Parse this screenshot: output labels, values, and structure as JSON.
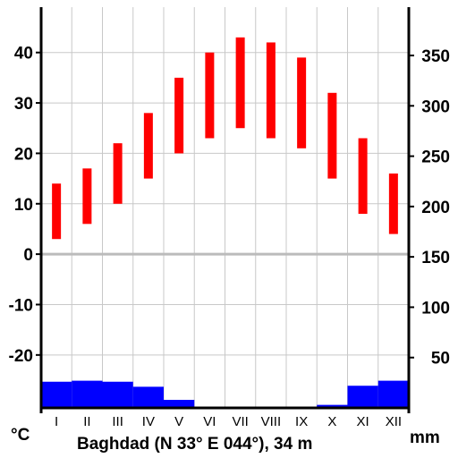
{
  "chart_data": {
    "type": "climate-diagram",
    "title": "Baghdad (N 33° E 044°), 34 m",
    "left_unit": "°C",
    "right_unit": "mm",
    "categories": [
      "I",
      "II",
      "III",
      "IV",
      "V",
      "VI",
      "VII",
      "VIII",
      "IX",
      "X",
      "XI",
      "XII"
    ],
    "temperature": {
      "min": [
        3,
        6,
        10,
        15,
        20,
        23,
        25,
        23,
        21,
        15,
        8,
        4
      ],
      "max": [
        14,
        17,
        22,
        28,
        35,
        40,
        43,
        42,
        39,
        32,
        23,
        16
      ]
    },
    "precipitation_mm": [
      26,
      27,
      26,
      21,
      8,
      0,
      0,
      0,
      0,
      3,
      22,
      27
    ],
    "left_axis": {
      "ticks": [
        40,
        30,
        20,
        10,
        0,
        -10,
        -20
      ],
      "range": [
        -30.5,
        49
      ]
    },
    "right_axis": {
      "ticks": [
        350,
        300,
        250,
        200,
        150,
        100,
        50
      ],
      "range": [
        0,
        398
      ]
    },
    "grid": true,
    "colors": {
      "temperature": "#ff0000",
      "precipitation": "#0000ff",
      "zero_line": "#bbbbbb",
      "grid": "#c8c8c8"
    }
  }
}
